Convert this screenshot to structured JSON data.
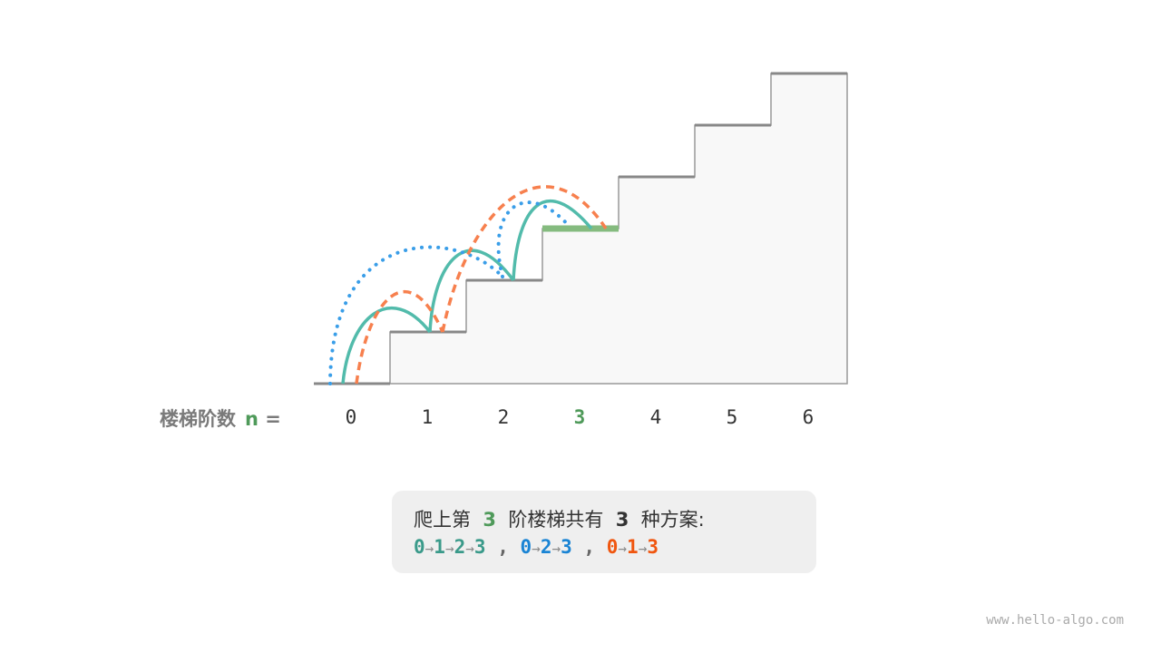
{
  "axis": {
    "title": "楼梯阶数",
    "var": "n",
    "eq": "=",
    "steps": [
      "0",
      "1",
      "2",
      "3",
      "4",
      "5",
      "6"
    ],
    "highlight_step": 3
  },
  "colors": {
    "target": "#4f9a5a",
    "path1": "#3a9a8a",
    "path2": "#1a84d4",
    "path3": "#f0560f",
    "curve_solid": "#52bbab",
    "curve_dotted": "#3a9ee8",
    "curve_dashed": "#f7804e",
    "stair": "#888888"
  },
  "caption": {
    "pre": "爬上第",
    "n": "3",
    "mid": "阶楼梯共有",
    "count": "3",
    "post": "种方案:",
    "paths": [
      [
        "0",
        "1",
        "2",
        "3"
      ],
      [
        "0",
        "2",
        "3"
      ],
      [
        "0",
        "1",
        "3"
      ]
    ],
    "arrow": "→",
    "sep": ","
  },
  "watermark": "www.hello-algo.com"
}
